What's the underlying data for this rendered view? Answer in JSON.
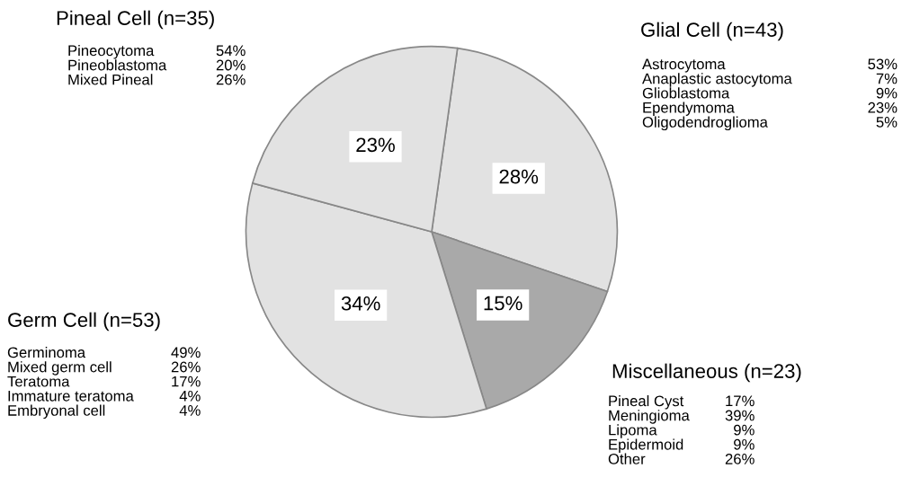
{
  "chart_data": {
    "type": "pie",
    "categories": [
      "Glial Cell (n=43)",
      "Miscellaneous (n=23)",
      "Germ Cell (n=53)",
      "Pineal Cell (n=35)"
    ],
    "values": [
      28,
      15,
      34,
      23
    ],
    "colors": [
      "#e2e2e2",
      "#a9a9a9",
      "#e2e2e2",
      "#e2e2e2"
    ],
    "value_labels": [
      "28%",
      "15%",
      "34%",
      "23%"
    ],
    "annotations": [
      "Astrocytoma\nAnaplastic astocytoma\nGlioblastoma\nEpendymoma\nOligodendroglioma",
      "53%\n7%\n9%\n23%\n5%",
      "Pineal Cyst\nMeningioma\nLipoma\nEpidermoid\nOther",
      "17%\n39%\n9%\n9%\n26%",
      "Germinoma\nMixed germ cell\nTeratoma\nImmature teratoma\nEmbryonal cell",
      "49%\n26%\n17%\n4%\n4%",
      "Pineocytoma\nPineoblastoma\nMixed Pineal",
      "54%\n20%\n26%"
    ]
  }
}
